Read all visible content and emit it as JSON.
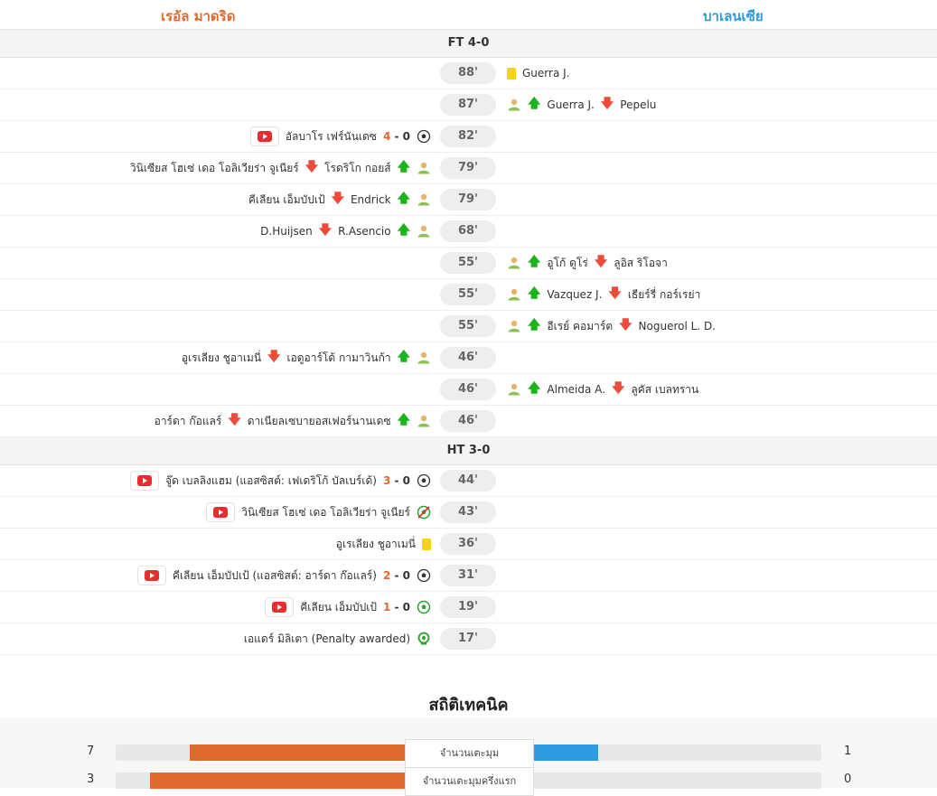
{
  "teams": {
    "home": "เรอัล มาดริด",
    "away": "บาเลนเซีย"
  },
  "timeline": [
    {
      "type": "separator",
      "label": "FT 4-0"
    },
    {
      "minute": "88'",
      "side": "away",
      "kind": "yellow",
      "player": "Guerra J."
    },
    {
      "minute": "87'",
      "side": "away",
      "kind": "sub",
      "in": "Guerra J.",
      "out": "Pepelu"
    },
    {
      "minute": "82'",
      "side": "home",
      "kind": "goal",
      "player": "อัลบาโร เฟร์นันเดซ",
      "home_score": "4",
      "away_score": "0",
      "video": true
    },
    {
      "minute": "79'",
      "side": "home",
      "kind": "sub",
      "in": "โรดริโก กอยส์",
      "out": "วินิเซียส โฮเซ่ เดอ โอลิเวียร่า จูเนียร์"
    },
    {
      "minute": "79'",
      "side": "home",
      "kind": "sub",
      "in": "Endrick",
      "out": "คีเลียน เอ็มบัปเป้"
    },
    {
      "minute": "68'",
      "side": "home",
      "kind": "sub",
      "in": "R.Asencio",
      "out": "D.Huijsen"
    },
    {
      "minute": "55'",
      "side": "away",
      "kind": "sub",
      "in": "อูโก้ ดูโร่",
      "out": "ลูอิส ริโอจา"
    },
    {
      "minute": "55'",
      "side": "away",
      "kind": "sub",
      "in": "Vazquez J.",
      "out": "เธียร์รี่ กอร์เรย่า"
    },
    {
      "minute": "55'",
      "side": "away",
      "kind": "sub",
      "in": "อีเรย์ คอมาร์ต",
      "out": "Noguerol L. D."
    },
    {
      "minute": "46'",
      "side": "home",
      "kind": "sub",
      "in": "เอดูอาร์โด้ กามาวินก้า",
      "out": "อูเรเลียง ชูอาเมนี่"
    },
    {
      "minute": "46'",
      "side": "away",
      "kind": "sub",
      "in": "Almeida A.",
      "out": "ลูคัส เบลทราน"
    },
    {
      "minute": "46'",
      "side": "home",
      "kind": "sub",
      "in": "ดาเนียลเซบายอสเฟอร์นานเดซ",
      "out": "อาร์ดา ก๊อแลร์"
    },
    {
      "type": "separator",
      "label": "HT 3-0"
    },
    {
      "minute": "44'",
      "side": "home",
      "kind": "goal",
      "player": "จู๊ด เบลลิงแฮม (แอสซิสต์: เฟเดริโก้ บัลเบร์เด้)",
      "home_score": "3",
      "away_score": "0",
      "video": true
    },
    {
      "minute": "43'",
      "side": "home",
      "kind": "missed_penalty",
      "player": "วินิเซียส โฮเซ่ เดอ โอลิเวียร่า จูเนียร์",
      "video": true
    },
    {
      "minute": "36'",
      "side": "home",
      "kind": "yellow",
      "player": "อูเรเลียง ชูอาเมนี่"
    },
    {
      "minute": "31'",
      "side": "home",
      "kind": "goal",
      "player": "คีเลียน เอ็มบัปเป้ (แอสซิสต์: อาร์ดา ก๊อแลร์)",
      "home_score": "2",
      "away_score": "0",
      "video": true
    },
    {
      "minute": "19'",
      "side": "home",
      "kind": "penalty_goal",
      "player": "คีเลียน เอ็มบัปเป้",
      "home_score": "1",
      "away_score": "0",
      "video": true
    },
    {
      "minute": "17'",
      "side": "home",
      "kind": "var",
      "player": "เอแดร์ มิลิเตา (Penalty awarded)"
    }
  ],
  "stats": {
    "title": "สถิติเทคนิค",
    "rows": [
      {
        "label": "จำนวนเตะมุม",
        "home": "7",
        "away": "1",
        "home_frac": 0.875,
        "away_frac": 0.125
      },
      {
        "label": "จำนวนเตะมุมครึ่งแรก",
        "home": "3",
        "away": "0",
        "home_frac": 1.0,
        "away_frac": 0.0
      }
    ]
  },
  "colors": {
    "home": "#e06a2e",
    "away": "#2e9ae0"
  }
}
